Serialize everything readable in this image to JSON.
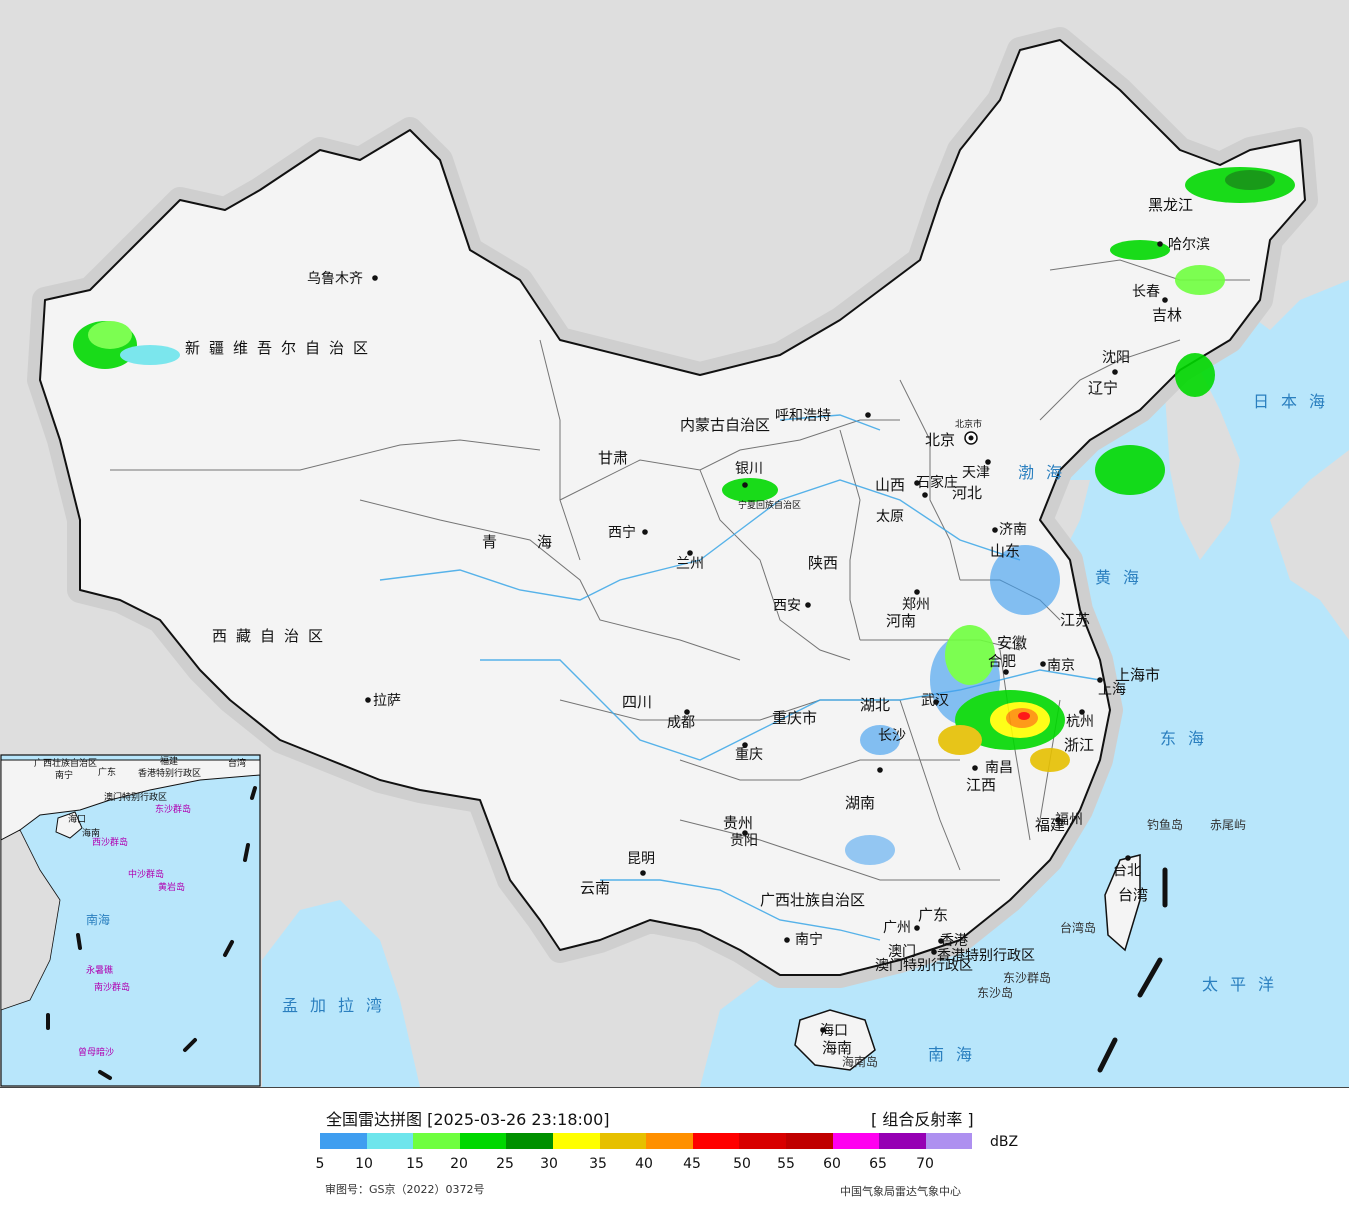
{
  "legend": {
    "title": "全国雷达拼图 [2025-03-26 23:18:00]",
    "product": "[ 组合反射率 ]",
    "unit": "dBZ",
    "ticks": [
      "5",
      "10",
      "15",
      "20",
      "25",
      "30",
      "35",
      "40",
      "45",
      "50",
      "55",
      "60",
      "65",
      "70"
    ],
    "colors": [
      "#3f9ef0",
      "#6ee5ec",
      "#6fff3f",
      "#00d800",
      "#009000",
      "#ffff00",
      "#e6c000",
      "#ff9000",
      "#ff0000",
      "#d80000",
      "#c00000",
      "#ff00f0",
      "#9600b4",
      "#ae90f0"
    ]
  },
  "footer": {
    "approval": "审图号：GS京（2022）0372号",
    "credit": "中国气象局雷达气象中心"
  },
  "map": {
    "colors": {
      "sea": "#b8e6fb",
      "land": "#f4f4f4",
      "foreign": "#dedede",
      "river": "#3aa6e6"
    },
    "capital": "北京",
    "cities": [
      "乌鲁木齐",
      "拉萨",
      "西宁",
      "兰州",
      "银川",
      "呼和浩特",
      "石家庄",
      "太原",
      "济南",
      "天津",
      "沈阳",
      "长春",
      "哈尔滨",
      "郑州",
      "西安",
      "成都",
      "重庆",
      "贵阳",
      "昆明",
      "南宁",
      "广州",
      "香港",
      "澳门",
      "武汉",
      "长沙",
      "南昌",
      "合肥",
      "南京",
      "上海",
      "杭州",
      "福州",
      "台北",
      "海口",
      "北京市"
    ],
    "regions": [
      "新疆维吾尔自治区",
      "西藏自治区",
      "青海",
      "甘肃",
      "内蒙古自治区",
      "宁夏回族自治区",
      "陕西",
      "山西",
      "河北",
      "河南",
      "山东",
      "辽宁",
      "吉林",
      "黑龙江",
      "四川",
      "重庆市",
      "贵州",
      "云南",
      "广西壮族自治区",
      "湖北",
      "湖南",
      "江西",
      "安徽",
      "江苏",
      "上海市",
      "浙江",
      "福建",
      "广东",
      "海南",
      "台湾",
      "香港特别行政区",
      "澳门特别行政区"
    ],
    "seas": [
      "渤海",
      "黄海",
      "东海",
      "南海",
      "太平洋",
      "日本海",
      "孟加拉湾"
    ],
    "islands": [
      "钓鱼岛",
      "赤尾屿",
      "台湾岛",
      "东沙群岛",
      "东沙岛",
      "海南岛"
    ],
    "inset": {
      "labels": [
        "广西壮族自治区",
        "南宁",
        "广东",
        "福建",
        "台湾",
        "香港特别行政区",
        "澳门特别行政区",
        "东沙群岛",
        "海口",
        "海南",
        "西沙群岛",
        "中沙群岛",
        "黄岩岛",
        "南海",
        "永暑礁",
        "南沙群岛",
        "曾母暗沙"
      ]
    }
  }
}
